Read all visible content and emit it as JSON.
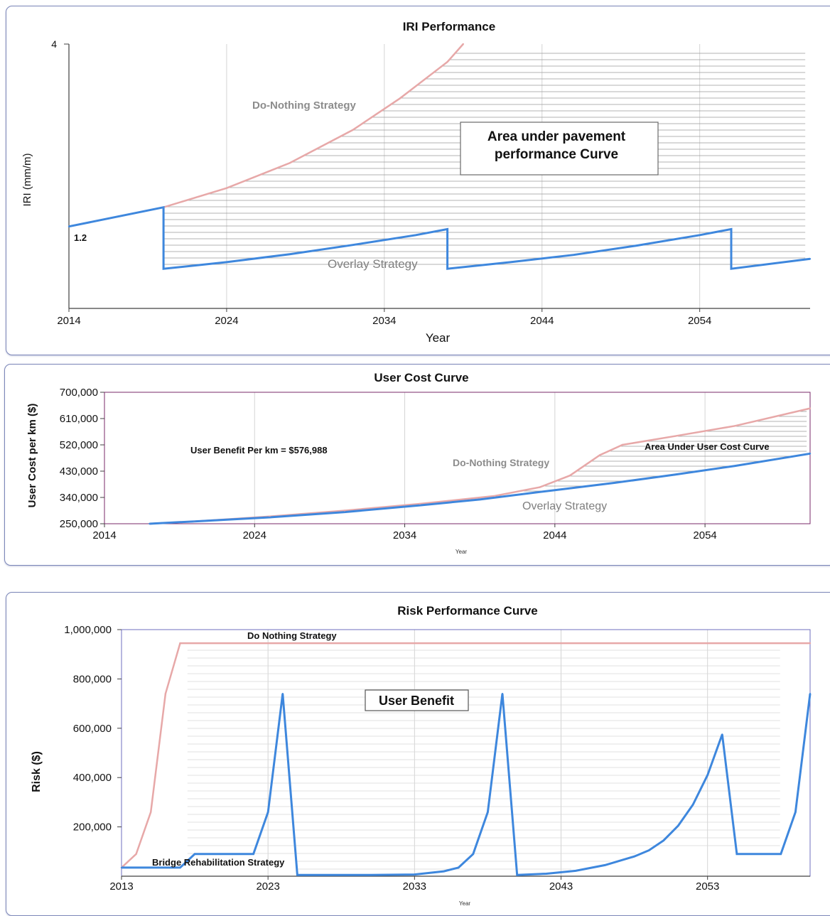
{
  "colors": {
    "do_nothing": "#e7a8a8",
    "strategy": "#3e87dd",
    "hatch": "#9a9a9a",
    "grid": "#d4d4d4",
    "axis": "#404040",
    "frame_purple": "#7a2a6a",
    "frame_blue": "#6f6fbf"
  },
  "chart_data": [
    {
      "type": "line",
      "title": "IRI Performance",
      "xlabel": "Year",
      "ylabel": "IRI (mm/m)",
      "xlim": [
        2014,
        2061
      ],
      "ylim": [
        0,
        4
      ],
      "x_ticks": [
        "2014",
        "2024",
        "2034",
        "2044",
        "2054"
      ],
      "y_ticks": [
        "4"
      ],
      "start_label": "1.2",
      "annotation_box": {
        "line1": "Area under pavement",
        "line2": "performance Curve"
      },
      "series": [
        {
          "name": "Do-Nothing Strategy",
          "points": [
            [
              2020.0,
              1.53
            ],
            [
              2024.0,
              1.82
            ],
            [
              2028.0,
              2.2
            ],
            [
              2032.0,
              2.7
            ],
            [
              2035.0,
              3.18
            ],
            [
              2038.0,
              3.73
            ],
            [
              2039.0,
              4.0
            ]
          ]
        },
        {
          "name": "Overlay Strategy",
          "points": [
            [
              2014.0,
              1.24
            ],
            [
              2020.0,
              1.53
            ],
            [
              2020.0,
              0.6
            ],
            [
              2024.0,
              0.7
            ],
            [
              2028.0,
              0.82
            ],
            [
              2032.0,
              0.96
            ],
            [
              2036.0,
              1.11
            ],
            [
              2038.0,
              1.2
            ],
            [
              2038.0,
              0.6
            ],
            [
              2042.0,
              0.7
            ],
            [
              2046.0,
              0.81
            ],
            [
              2050.0,
              0.95
            ],
            [
              2054.0,
              1.11
            ],
            [
              2056.0,
              1.2
            ],
            [
              2056.0,
              0.6
            ],
            [
              2061.0,
              0.75
            ]
          ]
        }
      ]
    },
    {
      "type": "line",
      "title": "User Cost Curve",
      "xlabel": "Year",
      "ylabel": "User Cost per km ($)",
      "xlim": [
        2014,
        2061
      ],
      "ylim": [
        250000,
        700000
      ],
      "x_ticks": [
        "2014",
        "2024",
        "2034",
        "2044",
        "2054"
      ],
      "y_ticks": [
        "250,000",
        "340,000",
        "430,000",
        "520,000",
        "610,000",
        "700,000"
      ],
      "benefit_text": "User Benefit Per km = $576,988",
      "area_label": "Area Under User Cost Curve",
      "series": [
        {
          "name": "Do-Nothing Strategy",
          "points": [
            [
              2017.0,
              250000
            ],
            [
              2020.0,
              258000
            ],
            [
              2025.0,
              275000
            ],
            [
              2030.0,
              295000
            ],
            [
              2035.0,
              318000
            ],
            [
              2040.0,
              345000
            ],
            [
              2043.0,
              375000
            ],
            [
              2045.0,
              415000
            ],
            [
              2047.0,
              485000
            ],
            [
              2048.5,
              520000
            ],
            [
              2052.0,
              550000
            ],
            [
              2056.0,
              585000
            ],
            [
              2061.0,
              645000
            ]
          ]
        },
        {
          "name": "Overlay Strategy",
          "points": [
            [
              2017.0,
              250000
            ],
            [
              2020.0,
              258000
            ],
            [
              2025.0,
              272000
            ],
            [
              2030.0,
              290000
            ],
            [
              2035.0,
              313000
            ],
            [
              2039.0,
              333000
            ],
            [
              2044.0,
              365000
            ],
            [
              2048.0,
              390000
            ],
            [
              2052.0,
              418000
            ],
            [
              2056.0,
              448000
            ],
            [
              2061.0,
              490000
            ]
          ]
        }
      ]
    },
    {
      "type": "line",
      "title": "Risk Performance Curve",
      "xlabel": "Year",
      "ylabel": "Risk ($)",
      "xlim": [
        2013,
        2060
      ],
      "ylim": [
        0,
        1000000
      ],
      "x_ticks": [
        "2013",
        "2023",
        "2033",
        "2043",
        "2053"
      ],
      "y_ticks": [
        "200,000",
        "400,000",
        "600,000",
        "800,000",
        "1,000,000"
      ],
      "annotation_box": "User Benefit",
      "series": [
        {
          "name": "Do Nothing Strategy",
          "points": [
            [
              2013.0,
              35000
            ],
            [
              2014.0,
              90000
            ],
            [
              2015.0,
              260000
            ],
            [
              2016.0,
              740000
            ],
            [
              2017.0,
              945000
            ],
            [
              2060.0,
              945000
            ]
          ]
        },
        {
          "name": "Bridge Rehabilitation Strategy",
          "points": [
            [
              2013.0,
              35000
            ],
            [
              2017.0,
              35000
            ],
            [
              2018.0,
              90000
            ],
            [
              2022.0,
              90000
            ],
            [
              2023.0,
              260000
            ],
            [
              2024.0,
              740000
            ],
            [
              2025.0,
              5000
            ],
            [
              2030.0,
              5000
            ],
            [
              2033.0,
              7000
            ],
            [
              2035.0,
              20000
            ],
            [
              2036.0,
              35000
            ],
            [
              2037.0,
              90000
            ],
            [
              2038.0,
              260000
            ],
            [
              2039.0,
              740000
            ],
            [
              2040.0,
              5000
            ],
            [
              2042.0,
              10000
            ],
            [
              2044.0,
              22000
            ],
            [
              2046.0,
              45000
            ],
            [
              2048.0,
              80000
            ],
            [
              2049.0,
              105000
            ],
            [
              2050.0,
              145000
            ],
            [
              2051.0,
              205000
            ],
            [
              2052.0,
              290000
            ],
            [
              2053.0,
              410000
            ],
            [
              2054.0,
              575000
            ],
            [
              2055.0,
              90000
            ],
            [
              2058.0,
              90000
            ],
            [
              2059.0,
              260000
            ],
            [
              2060.0,
              740000
            ]
          ]
        }
      ]
    }
  ]
}
